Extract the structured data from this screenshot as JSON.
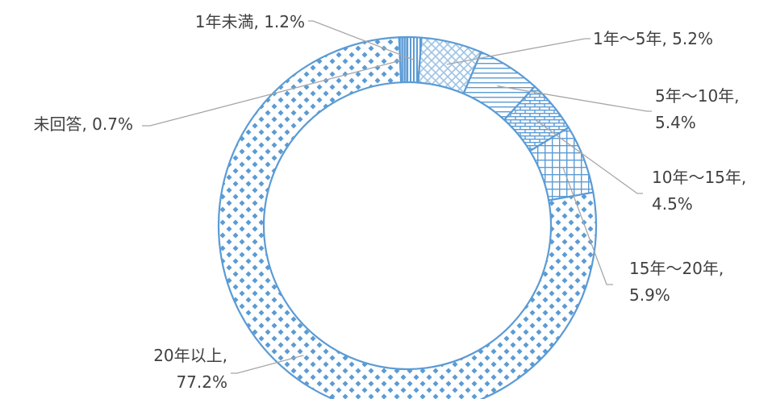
{
  "colors": {
    "accent": "#5b9bd5",
    "light": "#9dc3e6",
    "leader": "#a6a6a6",
    "text": "#404040"
  },
  "chart_data": {
    "type": "pie",
    "style": "doughnut",
    "title": "",
    "slices": [
      {
        "label": "1年未満, 1.2%",
        "lines": [
          "1年未満, 1.2%"
        ],
        "value": 1.2,
        "pattern": "vertical-stripes"
      },
      {
        "label": "1年～5年, 5.2%",
        "lines": [
          "1年～5年, 5.2%"
        ],
        "value": 5.2,
        "pattern": "diagonal-cross"
      },
      {
        "label": "5年～10年, 5.4%",
        "lines": [
          "5年～10年,",
          "5.4%"
        ],
        "value": 5.4,
        "pattern": "horizontal-lines"
      },
      {
        "label": "10年～15年, 4.5%",
        "lines": [
          "10年～15年,",
          "4.5%"
        ],
        "value": 4.5,
        "pattern": "brick"
      },
      {
        "label": "15年～20年, 5.9%",
        "lines": [
          "15年～20年,",
          "5.9%"
        ],
        "value": 5.9,
        "pattern": "grid"
      },
      {
        "label": "20年以上, 77.2%",
        "lines": [
          "20年以上,",
          "77.2%"
        ],
        "value": 77.2,
        "pattern": "diamond-dots"
      },
      {
        "label": "未回答, 0.7%",
        "lines": [
          "未回答, 0.7%"
        ],
        "value": 0.7,
        "pattern": "dense-lines"
      }
    ],
    "legend": "none",
    "data_labels": "outside-with-leader-lines"
  }
}
